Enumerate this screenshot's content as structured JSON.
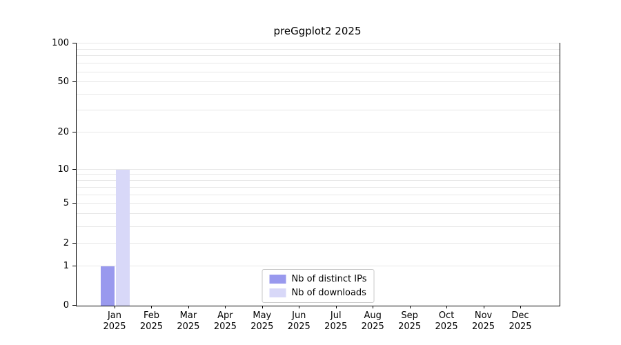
{
  "chart_data": {
    "type": "bar",
    "title": "preGgplot2 2025",
    "categories": [
      "Jan",
      "Feb",
      "Mar",
      "Apr",
      "May",
      "Jun",
      "Jul",
      "Aug",
      "Sep",
      "Oct",
      "Nov",
      "Dec"
    ],
    "category_year": "2025",
    "series": [
      {
        "name": "Nb of distinct IPs",
        "color": "#9999ee",
        "values": [
          1,
          0,
          0,
          0,
          0,
          0,
          0,
          0,
          0,
          0,
          0,
          0
        ]
      },
      {
        "name": "Nb of downloads",
        "color": "#d8d8f8",
        "values": [
          10,
          0,
          0,
          0,
          0,
          0,
          0,
          0,
          0,
          0,
          0,
          0
        ]
      }
    ],
    "yscale": "log1p",
    "ylim": [
      0,
      100
    ],
    "yticks": [
      0,
      1,
      2,
      5,
      10,
      20,
      50,
      100
    ],
    "gridlines": [
      1,
      2,
      3,
      4,
      5,
      6,
      7,
      8,
      9,
      10,
      20,
      30,
      40,
      50,
      60,
      70,
      80,
      90,
      100
    ],
    "grid": true,
    "legend_position": "bottom-center",
    "xlabel": "",
    "ylabel": ""
  }
}
